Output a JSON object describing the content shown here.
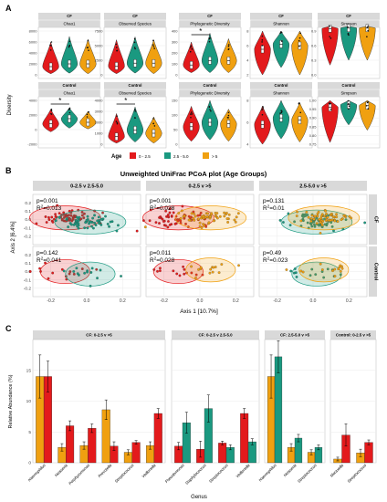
{
  "colors": {
    "age_0_25": "#e31a1c",
    "age_25_50": "#1a9980",
    "age_gt5": "#f0a010",
    "strip_bg": "#d9d9d9",
    "panel_grid": "#ebebeb"
  },
  "panel_a": {
    "label": "A",
    "ylabel": "Diversity",
    "legend": {
      "title": "Age",
      "items": [
        "0 - 2.5",
        "2.5 - 5.0",
        "> 5"
      ]
    },
    "chart_data": [
      {
        "type": "violin",
        "group": "CF",
        "metric": "Chao1",
        "yticks": [
          "8000",
          "6000",
          "4000",
          "2000",
          "0"
        ],
        "sig": false,
        "medians": [
          1500,
          2000,
          2000
        ],
        "ranges": [
          [
            200,
            6000
          ],
          [
            300,
            7000
          ],
          [
            200,
            6500
          ]
        ]
      },
      {
        "type": "violin",
        "group": "CF",
        "metric": "Observed Species",
        "yticks": [
          "7500",
          "5000",
          "2500",
          "0"
        ],
        "sig": false,
        "medians": [
          1500,
          2000,
          2000
        ],
        "ranges": [
          [
            200,
            6000
          ],
          [
            300,
            6500
          ],
          [
            200,
            6000
          ]
        ]
      },
      {
        "type": "violin",
        "group": "CF",
        "metric": "Phylogenetic Diversity",
        "yticks": [
          "400",
          "300",
          "200",
          "100",
          "0"
        ],
        "sig": true,
        "sig_label": "*",
        "medians": [
          90,
          130,
          130
        ],
        "ranges": [
          [
            20,
            300
          ],
          [
            20,
            380
          ],
          [
            20,
            330
          ]
        ]
      },
      {
        "type": "violin",
        "group": "CF",
        "metric": "Shannon",
        "yticks": [
          "8",
          "6",
          "4",
          "2"
        ],
        "sig": false,
        "medians": [
          5.5,
          6.2,
          6.0
        ],
        "ranges": [
          [
            2,
            8
          ],
          [
            3,
            8
          ],
          [
            2,
            8
          ]
        ]
      },
      {
        "type": "violin",
        "group": "CF",
        "metric": "Simpson",
        "yticks": [
          "0.9",
          "0.6",
          "0.3",
          "0.0"
        ],
        "sig": false,
        "medians": [
          0.95,
          0.96,
          0.96
        ],
        "ranges": [
          [
            0.2,
            1.0
          ],
          [
            0.3,
            1.0
          ],
          [
            0.3,
            1.0
          ]
        ]
      },
      {
        "type": "violin",
        "group": "Control",
        "metric": "Chao1",
        "yticks": [
          "4000",
          "2000",
          "0",
          "-2000"
        ],
        "sig": true,
        "sig_label": "*",
        "medians": [
          800,
          1500,
          1000
        ],
        "ranges": [
          [
            -300,
            2800
          ],
          [
            200,
            3000
          ],
          [
            100,
            2500
          ]
        ]
      },
      {
        "type": "violin",
        "group": "Control",
        "metric": "Observed Species",
        "yticks": [
          "4000",
          "3000",
          "2000",
          "1000",
          "0"
        ],
        "sig": true,
        "sig_label": "*",
        "medians": [
          700,
          1300,
          1000
        ],
        "ranges": [
          [
            100,
            2800
          ],
          [
            200,
            3400
          ],
          [
            100,
            2500
          ]
        ]
      },
      {
        "type": "violin",
        "group": "Control",
        "metric": "Phylogenetic Diversity",
        "yticks": [
          "150",
          "100",
          "50",
          "0"
        ],
        "sig": false,
        "medians": [
          60,
          75,
          70
        ],
        "ranges": [
          [
            10,
            130
          ],
          [
            15,
            150
          ],
          [
            10,
            120
          ]
        ]
      },
      {
        "type": "violin",
        "group": "Control",
        "metric": "Shannon",
        "yticks": [
          "8",
          "6",
          "4"
        ],
        "sig": false,
        "medians": [
          5.8,
          6.4,
          6.2
        ],
        "ranges": [
          [
            4,
            7.5
          ],
          [
            4.5,
            8
          ],
          [
            4.2,
            7.8
          ]
        ]
      },
      {
        "type": "violin",
        "group": "Control",
        "metric": "Simpson",
        "yticks": [
          "1.00",
          "0.95",
          "0.90",
          "0.85",
          "0.80",
          "0.75"
        ],
        "sig": false,
        "medians": [
          0.96,
          0.975,
          0.97
        ],
        "ranges": [
          [
            0.76,
            1.0
          ],
          [
            0.86,
            1.0
          ],
          [
            0.83,
            1.0
          ]
        ]
      }
    ]
  },
  "panel_b": {
    "label": "B",
    "title": "Unweighted UniFrac PCoA plot (Age Groups)",
    "xlabel": "Axis 1 [10.7%]",
    "ylabel": "Axis 2 [6.4%]",
    "col_labels": [
      "0-2.5 v 2.5-5.0",
      "0-2.5 v >5",
      "2.5-5.0 v >5"
    ],
    "row_labels": [
      "CF",
      "Control"
    ],
    "xticks": [
      "-0.2",
      "0.0",
      "0.2"
    ],
    "yticks": [
      "0.2",
      "0.1",
      "0.0",
      "-0.1",
      "-0.2"
    ],
    "chart_data": {
      "type": "scatter",
      "xlim": [
        -0.3,
        0.3
      ],
      "ylim": [
        -0.3,
        0.3
      ],
      "panels": [
        {
          "row": "CF",
          "col": "0-2.5 v 2.5-5.0",
          "p": "p=0.001",
          "r2": "0.013",
          "groups": [
            "age_0_25",
            "age_25_50"
          ]
        },
        {
          "row": "CF",
          "col": "0-2.5 v >5",
          "p": "p=0.001",
          "r2": "0.028",
          "groups": [
            "age_0_25",
            "age_gt5"
          ]
        },
        {
          "row": "CF",
          "col": "2.5-5.0 v >5",
          "p": "p=0.131",
          "r2": "0.01",
          "groups": [
            "age_25_50",
            "age_gt5"
          ]
        },
        {
          "row": "Control",
          "col": "0-2.5 v 2.5-5.0",
          "p": "p=0.142",
          "r2": "0.041",
          "groups": [
            "age_0_25",
            "age_25_50"
          ]
        },
        {
          "row": "Control",
          "col": "0-2.5 v >5",
          "p": "p=0.011",
          "r2": "0.028",
          "groups": [
            "age_0_25",
            "age_gt5"
          ]
        },
        {
          "row": "Control",
          "col": "2.5-5.0 v >5",
          "p": "p=0.49",
          "r2": "0.023",
          "groups": [
            "age_25_50",
            "age_gt5"
          ]
        }
      ]
    }
  },
  "panel_c": {
    "label": "C",
    "ylabel": "Relative Abundance (%)",
    "xlabel": "Genus",
    "yticks": [
      "0",
      "5",
      "10",
      "15"
    ],
    "chart_data": {
      "type": "bar",
      "ylim": [
        0,
        20
      ],
      "panels": [
        {
          "title": "CF: 0-2.5 v >5",
          "genera": [
            "Haemophilus",
            "Neisseria",
            "Porphyromonas",
            "Prevotella",
            "Streptococcus",
            "Veillonella"
          ],
          "bars": [
            [
              [
                "age_gt5",
                14.0,
                3.5
              ],
              [
                "age_0_25",
                14.0,
                2.5
              ]
            ],
            [
              [
                "age_gt5",
                2.5,
                0.6
              ],
              [
                "age_0_25",
                6.0,
                0.8
              ]
            ],
            [
              [
                "age_gt5",
                2.8,
                0.6
              ],
              [
                "age_0_25",
                5.6,
                0.7
              ]
            ],
            [
              [
                "age_gt5",
                8.6,
                1.6
              ],
              [
                "age_0_25",
                2.7,
                0.7
              ]
            ],
            [
              [
                "age_gt5",
                1.7,
                0.4
              ],
              [
                "age_0_25",
                3.3,
                0.3
              ]
            ],
            [
              [
                "age_gt5",
                2.8,
                0.6
              ],
              [
                "age_0_25",
                8.0,
                0.8
              ]
            ]
          ]
        },
        {
          "title": "CF: 0-2.5 v 2.5-5.0",
          "genera": [
            "Pseudomonas",
            "Staphylococcus",
            "Streptococcus",
            "Veillonella"
          ],
          "bars": [
            [
              [
                "age_0_25",
                2.7,
                0.6
              ],
              [
                "age_25_50",
                6.5,
                1.7
              ]
            ],
            [
              [
                "age_0_25",
                2.2,
                1.3
              ],
              [
                "age_25_50",
                8.8,
                2.2
              ]
            ],
            [
              [
                "age_0_25",
                3.2,
                0.3
              ],
              [
                "age_25_50",
                2.5,
                0.4
              ]
            ],
            [
              [
                "age_0_25",
                8.0,
                0.8
              ],
              [
                "age_25_50",
                3.4,
                0.5
              ]
            ]
          ]
        },
        {
          "title": "CF: 2.5-5.0 v >5",
          "genera": [
            "Haemophilus",
            "Neisseria",
            "Streptococcus"
          ],
          "bars": [
            [
              [
                "age_gt5",
                14.0,
                3.5
              ],
              [
                "age_25_50",
                17.2,
                2.6
              ]
            ],
            [
              [
                "age_gt5",
                2.5,
                0.6
              ],
              [
                "age_25_50",
                4.0,
                0.6
              ]
            ],
            [
              [
                "age_gt5",
                1.7,
                0.4
              ],
              [
                "age_25_50",
                2.5,
                0.4
              ]
            ]
          ]
        },
        {
          "title": "Control: 0-2.5 v >5",
          "genera": [
            "Moraxella",
            "Streptococcus"
          ],
          "bars": [
            [
              [
                "age_gt5",
                0.6,
                0.3
              ],
              [
                "age_0_25",
                4.5,
                1.8
              ]
            ],
            [
              [
                "age_gt5",
                1.6,
                0.6
              ],
              [
                "age_0_25",
                3.3,
                0.4
              ]
            ]
          ]
        }
      ]
    }
  }
}
